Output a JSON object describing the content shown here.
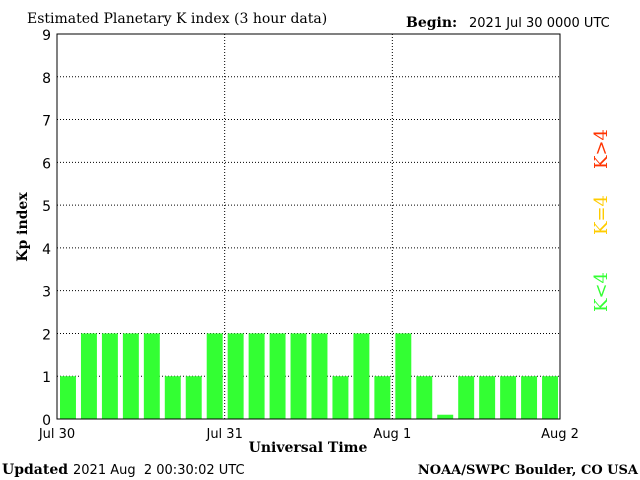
{
  "header": {
    "title": "Estimated Planetary K index (3 hour data)",
    "begin_label": "Begin:",
    "begin_value": "2021 Jul 30 0000 UTC"
  },
  "footer": {
    "updated_label": "Updated",
    "updated_value": "2021 Aug  2 00:30:02 UTC",
    "source": "NOAA/SWPC Boulder, CO USA"
  },
  "legend": {
    "items": [
      {
        "text": "K>4",
        "color": "#ff3300"
      },
      {
        "text": "K=4",
        "color": "#ffcc00"
      },
      {
        "text": "K<4",
        "color": "#33ff33"
      }
    ]
  },
  "chart_data": {
    "type": "bar",
    "title": "Estimated Planetary K index (3 hour data)",
    "xlabel": "Universal Time",
    "ylabel": "Kp index",
    "ylim": [
      0,
      9
    ],
    "yticks": [
      "0",
      "1",
      "2",
      "3",
      "4",
      "5",
      "6",
      "7",
      "8",
      "9"
    ],
    "xticks": [
      "Jul 30",
      "Jul 31",
      "Aug 1",
      "Aug 2"
    ],
    "grid": true,
    "bar_color": "#33ff33",
    "values": [
      1,
      2,
      2,
      2,
      2,
      1,
      1,
      2,
      2,
      2,
      2,
      2,
      2,
      1,
      2,
      1,
      2,
      1,
      0.1,
      1,
      1,
      1,
      1,
      1
    ]
  }
}
